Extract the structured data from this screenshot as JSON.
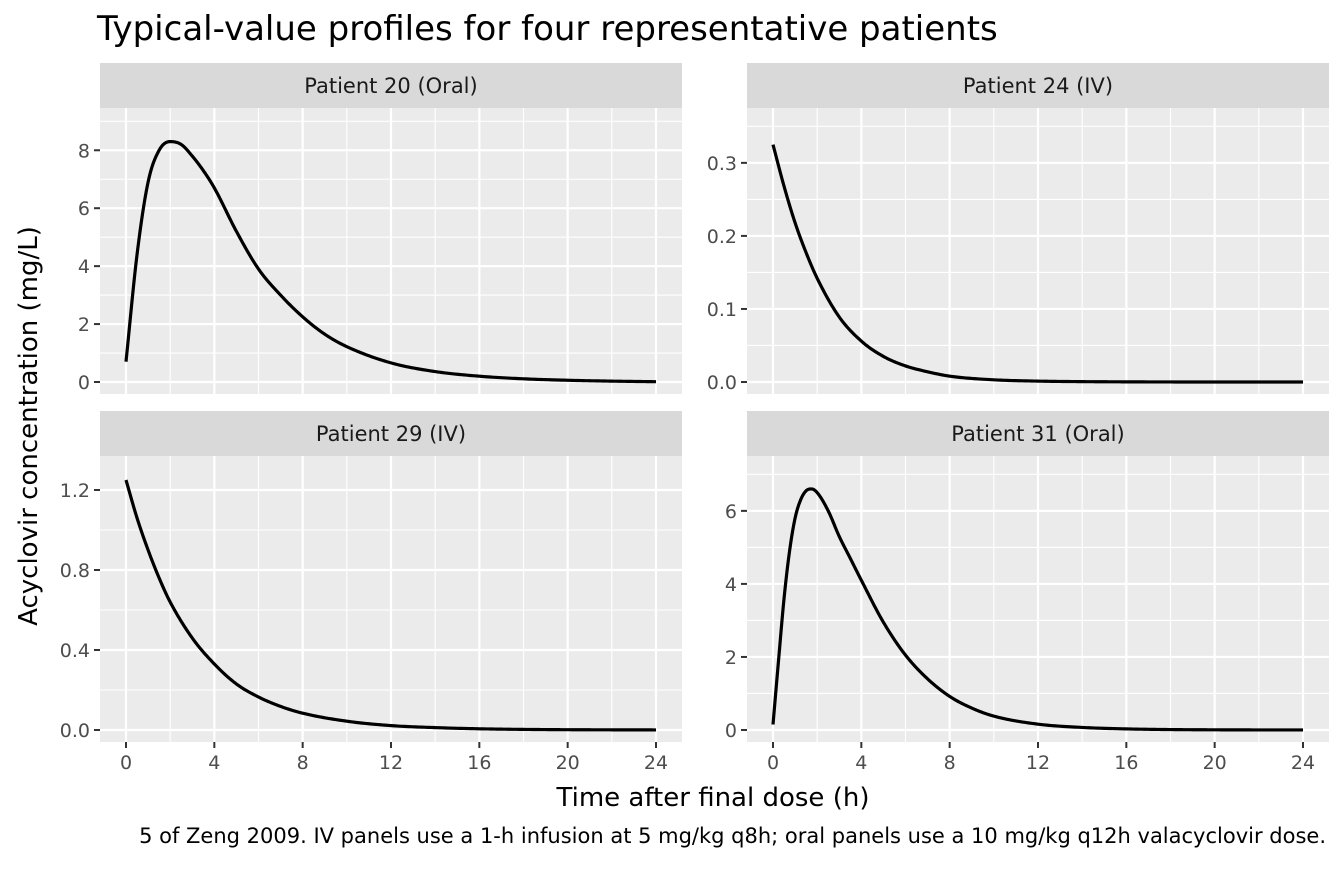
{
  "chart_data": {
    "type": "line",
    "title": "Typical-value profiles for four representative patients",
    "xlabel": "Time after final dose (h)",
    "ylabel": "Acyclovir concentration (mg/L)",
    "caption": "5 of Zeng 2009. IV panels use a 1-h infusion at 5 mg/kg q8h; oral panels use a 10 mg/kg q12h valacyclovir dose.",
    "grid": true,
    "facet_layout": "2x2",
    "colors": {
      "line": "#000000",
      "panel": "#ebebeb",
      "strip": "#d9d9d9"
    },
    "x_ticks": [
      0,
      4,
      8,
      12,
      16,
      20,
      24
    ],
    "panels": [
      {
        "label": "Patient 20 (Oral)",
        "route": "Oral",
        "xlim": [
          0,
          24
        ],
        "ylim": [
          0,
          8.7
        ],
        "y_ticks": [
          0,
          2,
          4,
          6,
          8
        ],
        "y_tick_labels": [
          "0",
          "2",
          "4",
          "6",
          "8"
        ],
        "x": [
          0,
          0.5,
          1,
          1.5,
          2,
          2.5,
          3,
          3.5,
          4,
          5,
          6,
          7,
          8,
          9,
          10,
          12,
          14,
          16,
          18,
          20,
          22,
          24
        ],
        "y": [
          0.7,
          4.4,
          6.9,
          8.0,
          8.3,
          8.2,
          7.8,
          7.3,
          6.7,
          5.2,
          3.9,
          3.0,
          2.25,
          1.65,
          1.22,
          0.66,
          0.36,
          0.2,
          0.11,
          0.06,
          0.03,
          0.01
        ]
      },
      {
        "label": "Patient 24 (IV)",
        "route": "IV",
        "xlim": [
          0,
          24
        ],
        "ylim": [
          0,
          0.345
        ],
        "y_ticks": [
          0,
          0.1,
          0.2,
          0.3
        ],
        "y_tick_labels": [
          "0.0",
          "0.1",
          "0.2",
          "0.3"
        ],
        "x": [
          0,
          0.5,
          1,
          1.5,
          2,
          3,
          4,
          5,
          6,
          7,
          8,
          10,
          12,
          14,
          16,
          20,
          24
        ],
        "y": [
          0.325,
          0.268,
          0.218,
          0.177,
          0.142,
          0.089,
          0.056,
          0.035,
          0.022,
          0.014,
          0.008,
          0.003,
          0.0012,
          0.0005,
          0.0002,
          0.0,
          0.0
        ]
      },
      {
        "label": "Patient 29 (IV)",
        "route": "IV",
        "xlim": [
          0,
          24
        ],
        "ylim": [
          0,
          1.26
        ],
        "y_ticks": [
          0,
          0.4,
          0.8,
          1.2
        ],
        "y_tick_labels": [
          "0.0",
          "0.4",
          "0.8",
          "1.2"
        ],
        "x": [
          0,
          0.5,
          1,
          1.5,
          2,
          3,
          4,
          5,
          6,
          7,
          8,
          10,
          12,
          14,
          16,
          18,
          20,
          22,
          24
        ],
        "y": [
          1.25,
          1.06,
          0.9,
          0.76,
          0.64,
          0.46,
          0.33,
          0.23,
          0.165,
          0.118,
          0.084,
          0.044,
          0.022,
          0.012,
          0.006,
          0.003,
          0.0015,
          0.0008,
          0.0004
        ]
      },
      {
        "label": "Patient 31 (Oral)",
        "route": "Oral",
        "xlim": [
          0,
          24
        ],
        "ylim": [
          0,
          6.9
        ],
        "y_ticks": [
          0,
          2,
          4,
          6
        ],
        "y_tick_labels": [
          "0",
          "2",
          "4",
          "6"
        ],
        "x": [
          0,
          0.25,
          0.5,
          0.75,
          1,
          1.25,
          1.5,
          1.75,
          2,
          2.5,
          3,
          3.5,
          4,
          5,
          6,
          7,
          8,
          9,
          10,
          12,
          14,
          16,
          18,
          20,
          22,
          24
        ],
        "y": [
          0.15,
          1.9,
          3.6,
          4.9,
          5.8,
          6.3,
          6.55,
          6.6,
          6.5,
          6.0,
          5.3,
          4.7,
          4.1,
          2.95,
          2.05,
          1.4,
          0.92,
          0.6,
          0.38,
          0.16,
          0.07,
          0.03,
          0.012,
          0.005,
          0.002,
          0.001
        ]
      }
    ]
  }
}
